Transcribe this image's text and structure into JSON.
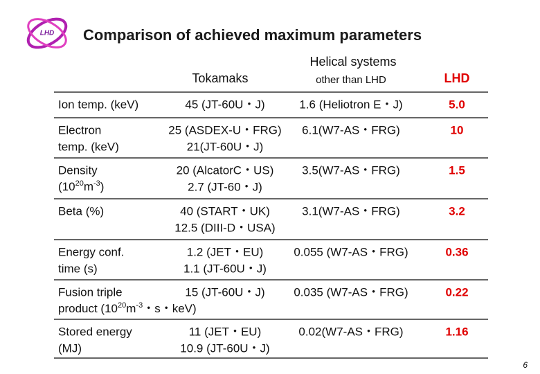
{
  "logo": {
    "text": "LHD"
  },
  "header": {
    "title": "Comparison of achieved maximum parameters"
  },
  "table": {
    "columns": [
      "",
      "Tokamaks",
      [
        "Helical systems",
        "other than LHD"
      ],
      "LHD"
    ],
    "lhd_color": "#e00000",
    "rows": [
      {
        "parameter": [
          "Ion temp. (keV)"
        ],
        "tokamaks": [
          "45 (JT-60U・J)"
        ],
        "helical": [
          "1.6 (Heliotron E・J)"
        ],
        "lhd": "5.0"
      },
      {
        "parameter": [
          "Electron",
          "temp. (keV)"
        ],
        "tokamaks": [
          "25 (ASDEX-U・FRG)",
          "21(JT-60U・J)"
        ],
        "helical": [
          "6.1(W7-AS・FRG)"
        ],
        "lhd": "10"
      },
      {
        "parameter": [
          "Density",
          [
            "(10",
            "20",
            "m",
            "-3",
            ")"
          ]
        ],
        "tokamaks": [
          "20 (AlcatorC・US)",
          "2.7 (JT-60・J)"
        ],
        "helical": [
          "3.5(W7-AS・FRG)"
        ],
        "helical_color": "#d838d8",
        "lhd": "1.5"
      },
      {
        "parameter": [
          "Beta (%)"
        ],
        "tokamaks": [
          "40 (START・UK)",
          "12.5 (DIII-D・USA)"
        ],
        "helical": [
          "3.1(W7-AS・FRG)"
        ],
        "lhd": "3.2"
      },
      {
        "parameter": [
          "Energy conf.",
          "time (s)"
        ],
        "tokamaks": [
          "1.2 (JET・EU)",
          "1.1 (JT-60U・J)"
        ],
        "helical": [
          "0.055 (W7-AS・FRG)"
        ],
        "lhd": "0.36"
      },
      {
        "parameter": [
          "Fusion triple",
          [
            "product (10",
            "20",
            "m",
            "-3",
            "・s・keV)"
          ]
        ],
        "tokamaks": [
          "15 (JT-60U・J)"
        ],
        "helical": [
          "0.035 (W7-AS・FRG)"
        ],
        "lhd": "0.22"
      },
      {
        "parameter": [
          "Stored energy",
          "(MJ)"
        ],
        "tokamaks": [
          "11 (JET・EU)",
          "10.9 (JT-60U・J)"
        ],
        "helical": [
          "0.02(W7-AS・FRG)"
        ],
        "lhd": "1.16"
      }
    ]
  },
  "footer": {
    "page": "6"
  }
}
